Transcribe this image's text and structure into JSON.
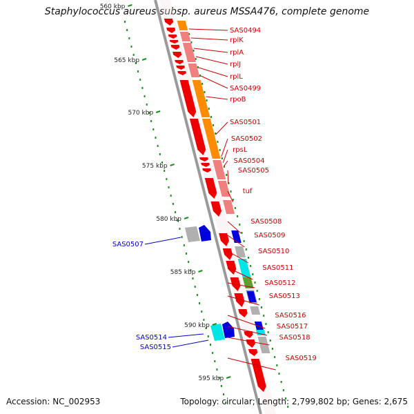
{
  "title": "Staphylococcus aureus subsp. aureus MSSA476, complete genome",
  "footer": {
    "accession": "Accession: NC_002953",
    "summary": "Topology: circular; Length: 2,799,802 bp; Genes: 2,675"
  },
  "scale_labels": [
    "560 kbp",
    "565 kbp",
    "570 kbp",
    "575 kbp",
    "580 kbp",
    "585 kbp",
    "590 kbp",
    "595 kbp"
  ],
  "gene_labels_right": [
    "SAS0494",
    "rplK",
    "rplA",
    "rplJ",
    "rplL",
    "SAS0499",
    "rpoB",
    "SAS0501",
    "SAS0502",
    "rpsL",
    "SAS0504",
    "SAS0505",
    "tuf",
    "SAS0508",
    "SAS0509",
    "SAS0510",
    "SAS0511",
    "SAS0512",
    "SAS0513",
    "SAS0516",
    "SAS0517",
    "SAS0518",
    "SAS0519"
  ],
  "gene_labels_left": [
    "SAS0507",
    "SAS0514",
    "SAS0515"
  ],
  "colors": {
    "forward_gene": "#ee0000",
    "reverse_gene": "#0000dd",
    "cog_orange": "#ff8c00",
    "cog_pink": "#f08080",
    "cog_cyan": "#00e5e5",
    "cog_grey": "#b0b0b0",
    "cog_green": "#5f9e2f",
    "backbone": "#808080",
    "label_right": "#cc0000",
    "label_left": "#0000cc",
    "gc_dots": "#1a8f1a"
  }
}
